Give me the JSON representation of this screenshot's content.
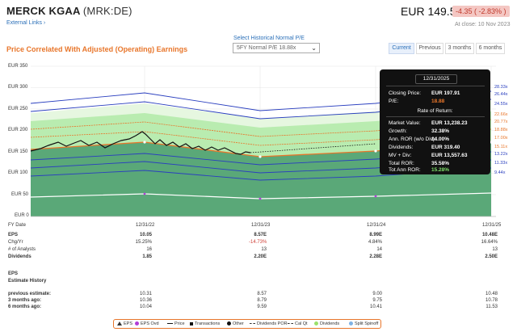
{
  "header": {
    "company": "MERCK KGAA",
    "ticker": "(MRK:DE)",
    "external_links": "External Links ›",
    "price": "EUR 149.50",
    "change": "-4.35 ( -2.83% )",
    "at_close": "At close: 10 Nov 2023"
  },
  "controls": {
    "title": "Price Correlated With Adjusted (Operating) Earnings",
    "select_label": "Select Historical Normal P/E",
    "select_value": "5FY Normal P/E 18.88x",
    "tabs": [
      "Current",
      "Previous",
      "3 months",
      "6 months"
    ],
    "active_tab": "Current"
  },
  "chart": {
    "y_labels": [
      "EUR 350",
      "EUR 300",
      "EUR 250",
      "EUR 200",
      "EUR 150",
      "EUR 100",
      "EUR 50",
      "EUR 0"
    ],
    "x_labels": [
      "12/31/22",
      "12/31/23",
      "12/31/24",
      "12/31/25"
    ],
    "right_labels": [
      {
        "text": "28.33x",
        "color": "#2a3fbf"
      },
      {
        "text": "26.44x",
        "color": "#2a3fbf"
      },
      {
        "text": "24.55x",
        "color": "#2a3fbf"
      },
      {
        "text": "22.66x",
        "color": "#e8762b"
      },
      {
        "text": "20.77x",
        "color": "#e8762b"
      },
      {
        "text": "18.88x",
        "color": "#e8762b"
      },
      {
        "text": "17.00x",
        "color": "#e8762b"
      },
      {
        "text": "15.11x",
        "color": "#e8762b"
      },
      {
        "text": "13.22x",
        "color": "#2a3fbf"
      },
      {
        "text": "11.33x",
        "color": "#2a3fbf"
      },
      {
        "text": "9.44x",
        "color": "#2a3fbf"
      }
    ]
  },
  "tooltip": {
    "date": "12/31/2025",
    "rows1": [
      {
        "k": "Closing Price:",
        "v": "EUR 197.91",
        "c": "#ffffff"
      },
      {
        "k": "P/E:",
        "v": "18.88",
        "c": "#e8762b"
      }
    ],
    "ror_title": "Rate of Return:",
    "rows2": [
      {
        "k": "Market Value:",
        "v": "EUR 13,238.23",
        "c": "#ffffff"
      },
      {
        "k": "Growth:",
        "v": "32.38%",
        "c": "#ffffff"
      },
      {
        "k": "Ann. ROR (w/o Div):",
        "v": "14.00%",
        "c": "#ffffff"
      },
      {
        "k": "Dividends:",
        "v": "EUR 319.40",
        "c": "#ffffff"
      },
      {
        "k": "MV + Div:",
        "v": "EUR 13,557.63",
        "c": "#ffffff"
      },
      {
        "k": "Total ROR:",
        "v": "35.58%",
        "c": "#ffffff"
      },
      {
        "k": "Tot Ann ROR:",
        "v": "15.28%",
        "c": "#7ee06a"
      }
    ]
  },
  "table": {
    "fy_label": "FY Date",
    "rows": [
      {
        "label": "EPS",
        "bold": true,
        "values": [
          "10.05",
          "8.57E",
          "8.99E",
          "10.48E"
        ],
        "red": [
          false,
          false,
          false,
          false
        ]
      },
      {
        "label": "Chg/Yr",
        "bold": false,
        "values": [
          "15.25%",
          "-14.73%",
          "4.84%",
          "16.64%"
        ],
        "red": [
          false,
          true,
          false,
          false
        ]
      },
      {
        "label": "# of Analysts",
        "bold": false,
        "values": [
          "16",
          "13",
          "14",
          "13"
        ],
        "red": [
          false,
          false,
          false,
          false
        ]
      },
      {
        "label": "Dividends",
        "bold": true,
        "values": [
          "1.85",
          "2.20E",
          "2.28E",
          "2.50E"
        ],
        "red": [
          false,
          false,
          false,
          false
        ]
      }
    ],
    "eps_label": "EPS",
    "est_label": "Estimate History",
    "est_rows": [
      {
        "label": "previous estimate:",
        "values": [
          "10.31",
          "8.57",
          "9.00",
          "10.48"
        ]
      },
      {
        "label": "3 months ago:",
        "values": [
          "10.36",
          "8.79",
          "9.75",
          "10.78"
        ]
      },
      {
        "label": "6 months ago:",
        "values": [
          "10.04",
          "9.59",
          "10.41",
          "11.53"
        ]
      }
    ]
  },
  "legend": [
    {
      "icon": "triangle",
      "label": "EPS",
      "color": "#333333"
    },
    {
      "icon": "dot",
      "label": "EPS Ovd",
      "color": "#b23ed8"
    },
    {
      "icon": "line",
      "label": "Price",
      "color": "#111111"
    },
    {
      "icon": "square",
      "label": "Transactions",
      "color": "#111111"
    },
    {
      "icon": "dot",
      "label": "Other",
      "color": "#111111"
    },
    {
      "icon": "dash",
      "label": "Dividends POR",
      "color": "#333333"
    },
    {
      "icon": "dash",
      "label": "Cal Qt",
      "color": "#333333"
    },
    {
      "icon": "dot",
      "label": "Dividends",
      "color": "#9be06a"
    },
    {
      "icon": "dot",
      "label": "Split Spinoff",
      "color": "#7fb2e5"
    }
  ]
}
